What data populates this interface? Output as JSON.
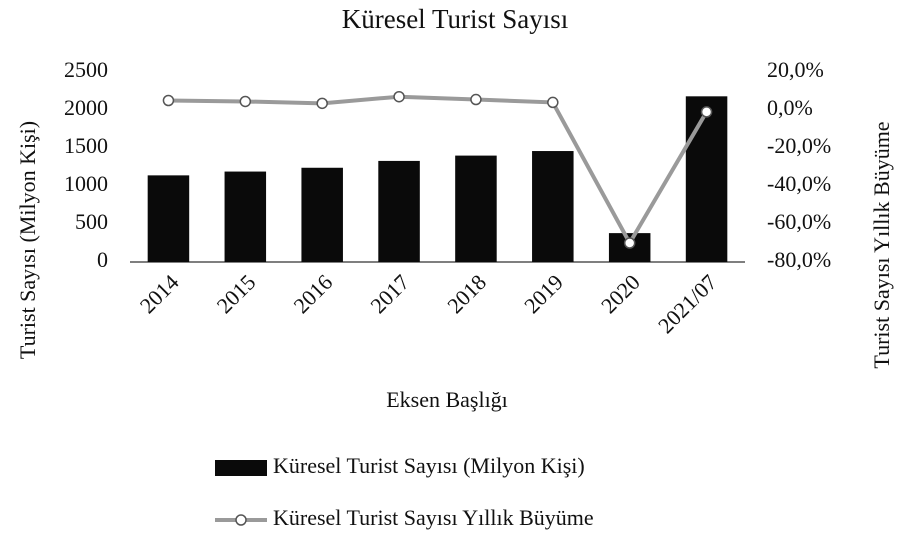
{
  "chart_data": {
    "type": "bar",
    "title": "Küresel Turist Sayısı",
    "x_label": "Eksen Başlığı",
    "y_label": "Turist Sayısı (Milyon Kişi)",
    "y2_label": "Turist Sayısı Yıllık Büyüme",
    "categories": [
      "2014",
      "2015",
      "2016",
      "2017",
      "2018",
      "2019",
      "2020",
      "2021/07"
    ],
    "series": [
      {
        "name": "Küresel Turist Sayısı (Milyon Kişi)",
        "type": "bar",
        "color": "#0a0a0a",
        "values": [
          1140,
          1190,
          1240,
          1330,
          1400,
          1460,
          380,
          2180
        ]
      },
      {
        "name": "Küresel Turist Sayısı Yıllık Büyüme",
        "type": "line",
        "axis": "y2",
        "color": "#9a9a9a",
        "values": [
          5,
          4.5,
          3.5,
          7,
          5.5,
          4,
          -70,
          -1
        ]
      }
    ],
    "ylim": [
      0,
      2500
    ],
    "yticks": [
      0,
      500,
      1000,
      1500,
      2000,
      2500
    ],
    "y2lim": [
      -80,
      20
    ],
    "y2ticks": [
      {
        "value": -80,
        "label": "-80,0%"
      },
      {
        "value": -60,
        "label": "-60,0%"
      },
      {
        "value": -40,
        "label": "-40,0%"
      },
      {
        "value": -20,
        "label": "-20,0%"
      },
      {
        "value": 0,
        "label": "0,0%"
      },
      {
        "value": 20,
        "label": "20,0%"
      }
    ],
    "legend": "bottom"
  }
}
